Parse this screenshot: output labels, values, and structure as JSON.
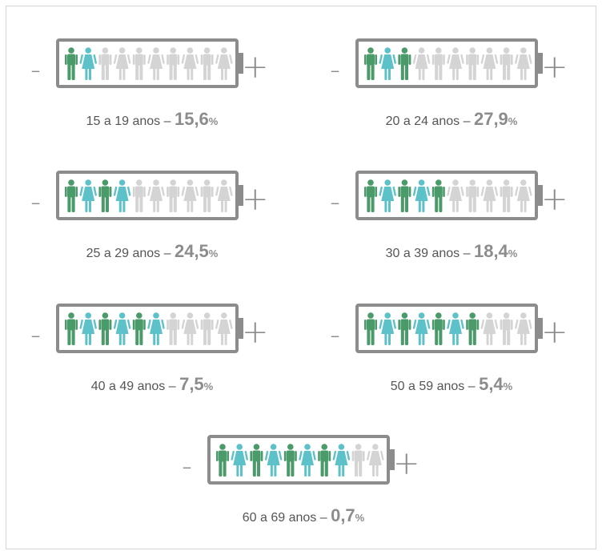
{
  "colors": {
    "male": "#4a9a6a",
    "female": "#5cc1c9",
    "inactive": "#d4d4d4",
    "battery": "#8c8c8c"
  },
  "signs": {
    "minus": "-",
    "plus": "+"
  },
  "percent_symbol": "%",
  "groups": [
    {
      "label": "15 a 19 anos –",
      "value": "15,6",
      "filled": 2
    },
    {
      "label": "20 a 24 anos –",
      "value": "27,9",
      "filled": 3
    },
    {
      "label": "25 a 29 anos –",
      "value": "24,5",
      "filled": 4
    },
    {
      "label": "30 a 39 anos –",
      "value": "18,4",
      "filled": 5
    },
    {
      "label": "40 a 49 anos –",
      "value": "7,5",
      "filled": 6
    },
    {
      "label": "50 a 59 anos –",
      "value": "5,4",
      "filled": 7
    },
    {
      "label": "60 a 69 anos –",
      "value": "0,7",
      "filled": 8
    }
  ]
}
